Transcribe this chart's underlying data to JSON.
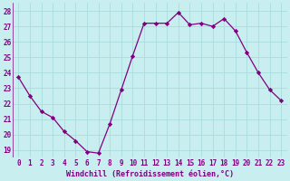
{
  "x": [
    0,
    1,
    2,
    3,
    4,
    5,
    6,
    7,
    8,
    9,
    10,
    11,
    12,
    13,
    14,
    15,
    16,
    17,
    18,
    19,
    20,
    21,
    22,
    23
  ],
  "y": [
    23.7,
    22.5,
    21.5,
    21.1,
    20.2,
    19.6,
    18.9,
    18.8,
    20.7,
    22.9,
    25.1,
    27.2,
    27.2,
    27.2,
    27.9,
    27.1,
    27.2,
    27.0,
    27.5,
    26.7,
    25.3,
    24.0,
    22.9,
    22.2
  ],
  "line_color": "#800080",
  "marker_color": "#800080",
  "bg_color": "#c8eef0",
  "grid_color": "#aadddd",
  "xlabel": "Windchill (Refroidissement éolien,°C)",
  "tick_color": "#800080",
  "yticks": [
    19,
    20,
    21,
    22,
    23,
    24,
    25,
    26,
    27,
    28
  ],
  "xticks": [
    0,
    1,
    2,
    3,
    4,
    5,
    6,
    7,
    8,
    9,
    10,
    11,
    12,
    13,
    14,
    15,
    16,
    17,
    18,
    19,
    20,
    21,
    22,
    23
  ],
  "ylim": [
    18.5,
    28.5
  ],
  "xlim": [
    -0.5,
    23.5
  ],
  "xlabel_fontsize": 6.0,
  "tick_fontsize": 5.5
}
